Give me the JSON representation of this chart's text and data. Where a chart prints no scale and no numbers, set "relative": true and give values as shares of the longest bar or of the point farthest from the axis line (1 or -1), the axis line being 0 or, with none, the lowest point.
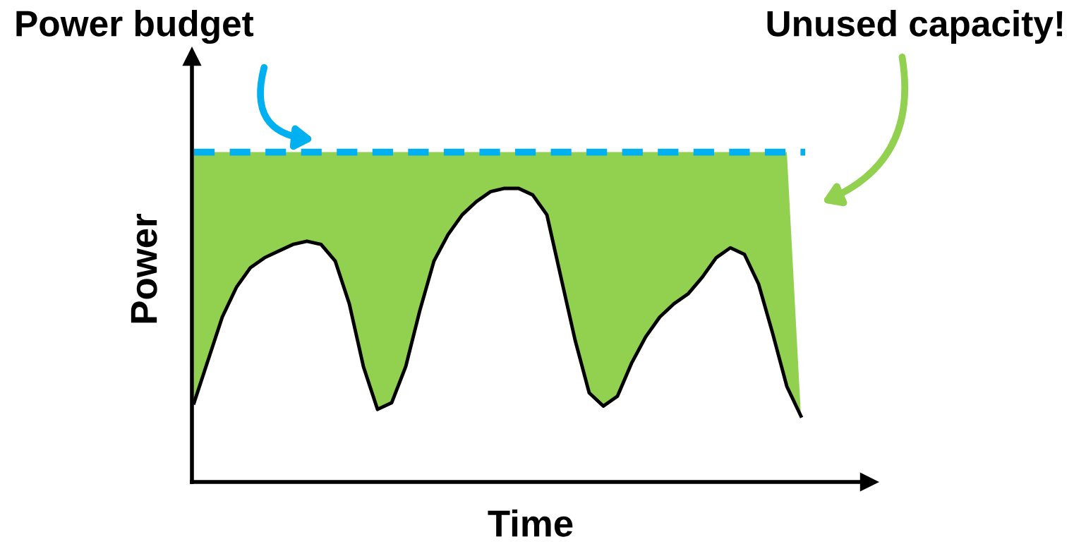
{
  "chart_data": {
    "type": "line",
    "relative": true,
    "xlabel": "Time",
    "ylabel": "Power",
    "categories": [
      null,
      null,
      null,
      null,
      null,
      null,
      null,
      null,
      null,
      null,
      null,
      null,
      null,
      null,
      null,
      null,
      null,
      null,
      null,
      null,
      null,
      null,
      null,
      null,
      null,
      null,
      null,
      null,
      null,
      null,
      null,
      null,
      null,
      null,
      null,
      null,
      null,
      null,
      null,
      null,
      null,
      null,
      null,
      null
    ],
    "series": [
      {
        "color": "#000000",
        "values": [
          0.24,
          0.37,
          0.5,
          0.59,
          0.65,
          0.68,
          0.7,
          0.72,
          0.73,
          0.72,
          0.67,
          0.54,
          0.35,
          0.22,
          0.24,
          0.35,
          0.52,
          0.67,
          0.75,
          0.81,
          0.85,
          0.88,
          0.89,
          0.89,
          0.87,
          0.81,
          0.62,
          0.43,
          0.27,
          0.23,
          0.26,
          0.36,
          0.44,
          0.5,
          0.54,
          0.57,
          0.62,
          0.68,
          0.71,
          0.69,
          0.6,
          0.45,
          0.29,
          0.2
        ]
      },
      {
        "type": "area",
        "color": "#92d050",
        "values": [
          1,
          1,
          1,
          1,
          1,
          1,
          1,
          1,
          1,
          1,
          1,
          1,
          1,
          1,
          1,
          1,
          1,
          1,
          1,
          1,
          1,
          1,
          1,
          1,
          1,
          1,
          1,
          1,
          1,
          1,
          1,
          1,
          1,
          1,
          1,
          1,
          1,
          1,
          1,
          1,
          1,
          1,
          1,
          0.2
        ]
      }
    ],
    "ref_lines": [
      {
        "axis": "y",
        "value": 1,
        "color": "#00b0f0",
        "line_style": "dashed"
      }
    ],
    "annotations": [
      "Power budget",
      "Unused capacity!"
    ],
    "line_style": "solid",
    "marker": "none",
    "legend": false
  }
}
